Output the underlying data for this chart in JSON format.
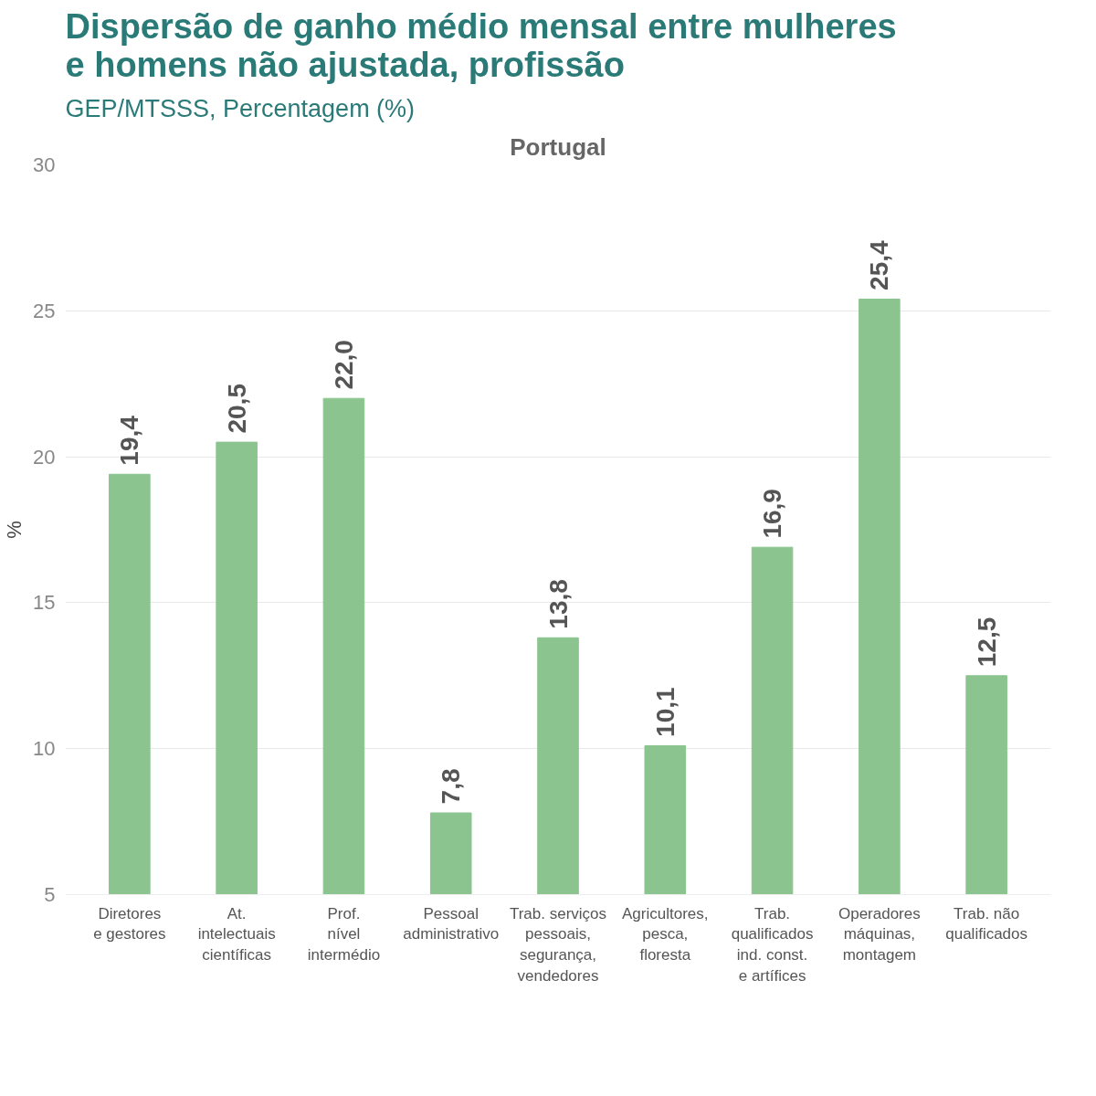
{
  "chart_data": {
    "type": "bar",
    "title": "Dispersão de ganho médio mensal entre mulheres\ne homens não ajustada, profissão",
    "subtitle": "GEP/MTSSS, Percentagem (%)",
    "annotations": [
      "Portugal"
    ],
    "ylabel": "%",
    "categories": [
      "Diretores\ne gestores",
      "At.\nintelectuais\ncientíficas",
      "Prof.\nnível\nintermédio",
      "Pessoal\nadministrativo",
      "Trab. serviços\npessoais,\nsegurança,\nvendedores",
      "Agricultores,\npesca,\nfloresta",
      "Trab.\nqualificados\nind. const.\ne artífices",
      "Operadores\nmáquinas,\nmontagem",
      "Trab. não\nqualificados"
    ],
    "values": [
      19.4,
      20.5,
      22.0,
      7.8,
      13.8,
      10.1,
      16.9,
      25.4,
      12.5
    ],
    "value_labels": [
      "19,4",
      "20,5",
      "22,0",
      "7,8",
      "13,8",
      "10,1",
      "16,9",
      "25,4",
      "12,5"
    ],
    "color": "#8bc48f",
    "ylim": [
      5,
      30
    ],
    "yticks": [
      5,
      10,
      15,
      20,
      25,
      30
    ],
    "grid": "y"
  }
}
